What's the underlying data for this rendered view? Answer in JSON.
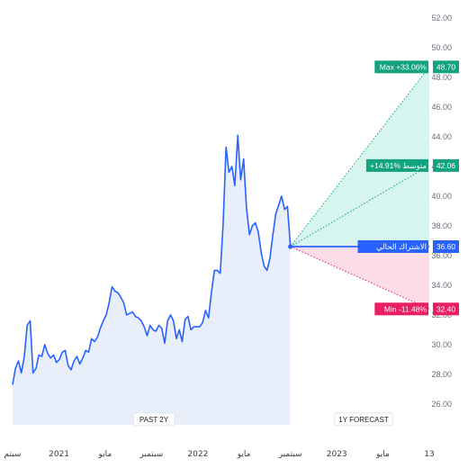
{
  "chart_data": {
    "type": "line",
    "y_ticks": [
      "26.00",
      "28.00",
      "30.00",
      "32.00",
      "34.00",
      "36.00",
      "38.00",
      "40.00",
      "42.00",
      "44.00",
      "46.00",
      "48.00",
      "50.00",
      "52.00"
    ],
    "ylim": [
      24.6,
      52.6
    ],
    "x_ticks": [
      {
        "label": "سبتم",
        "t": 0
      },
      {
        "label": "2021",
        "t": 0.167
      },
      {
        "label": "مايو",
        "t": 0.333
      },
      {
        "label": "سبتمبر",
        "t": 0.5
      },
      {
        "label": "2022",
        "t": 0.667
      },
      {
        "label": "مايو",
        "t": 0.833
      },
      {
        "label": "سبتمبر",
        "t": 1.0
      },
      {
        "label": "2023",
        "t": 1.167
      },
      {
        "label": "مايو",
        "t": 1.333
      },
      {
        "label": "13",
        "t": 1.5
      }
    ],
    "series": [
      {
        "values": [
          27.3,
          28.4,
          28.9,
          28.1,
          29.2,
          31.3,
          31.6,
          28.1,
          28.4,
          29.3,
          29.2,
          30.0,
          29.4,
          29.1,
          29.3,
          28.8,
          29.0,
          29.5,
          29.6,
          28.6,
          28.3,
          28.9,
          29.2,
          28.7,
          29.1,
          29.6,
          29.5,
          30.4,
          30.2,
          30.5,
          31.1,
          31.6,
          32.0,
          32.8,
          33.9,
          33.6,
          33.5,
          33.2,
          32.8,
          32.0,
          32.1,
          32.2,
          31.9,
          31.8,
          31.6,
          31.2,
          30.6,
          31.3,
          31.0,
          30.9,
          31.3,
          31.1,
          30.1,
          31.6,
          32.0,
          31.6,
          30.4,
          31.0,
          30.2,
          31.7,
          31.9,
          31.0,
          31.2,
          31.2,
          31.2,
          31.5,
          32.3,
          31.8,
          33.5,
          35.0,
          35.0,
          34.8,
          38.1,
          43.3,
          41.6,
          42.0,
          40.7,
          44.1,
          41.1,
          42.5,
          39.2,
          37.4,
          38.0,
          38.2,
          37.6,
          36.2,
          35.3,
          35.0,
          35.8,
          37.4,
          38.8,
          39.4,
          40.0,
          39.1,
          39.3,
          36.6
        ]
      }
    ],
    "current": {
      "label": "الاشتراك الحالي",
      "value": 36.6,
      "value_label": "36.60"
    },
    "forecast": {
      "max": {
        "label": "Max +33.06%",
        "value": 48.7,
        "value_label": "48.70"
      },
      "avg": {
        "label": "+14.91% متوسط",
        "value": 42.06,
        "value_label": "42.06"
      },
      "min": {
        "label": "Min -11.48%",
        "value": 32.4,
        "value_label": "32.40"
      }
    },
    "periods": {
      "past": "PAST 2Y",
      "forecast": "1Y FORECAST"
    }
  },
  "colors": {
    "line": "#2962ff",
    "area": "#e9eefb",
    "max": "#14a37f",
    "avg": "#14a37f",
    "min": "#e91e63",
    "up_fill": "#d5f5ee",
    "down_fill": "#fcdde7",
    "current": "#2962ff"
  }
}
